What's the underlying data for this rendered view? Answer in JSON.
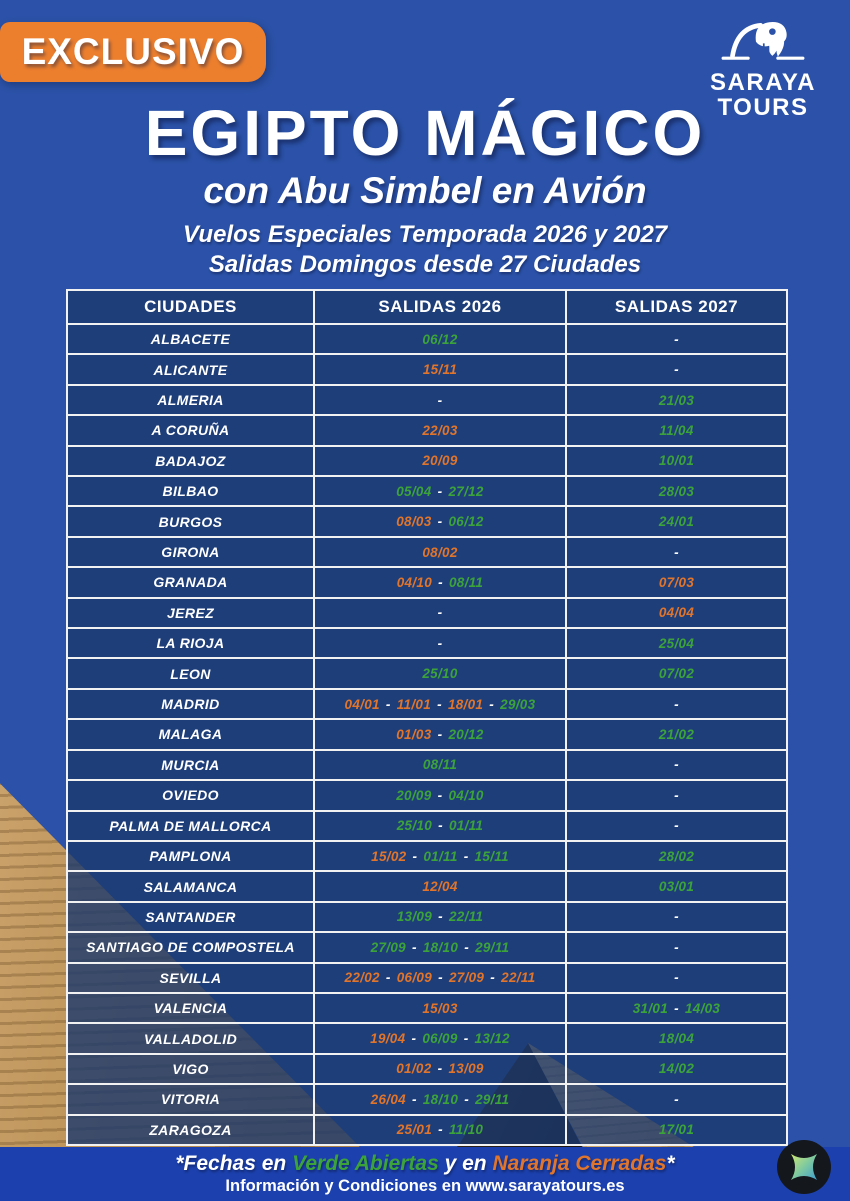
{
  "badge_label": "EXCLUSIVO",
  "brand": {
    "name_line1": "SARAYA",
    "name_line2": "TOURS",
    "logo_icon": "horus-falcon-icon"
  },
  "title": "EGIPTO MÁGICO",
  "subtitle": "con Abu Simbel en Avión",
  "tagline1": "Vuelos Especiales Temporada 2026 y 2027",
  "tagline2": "Salidas Domingos desde 27 Ciudades",
  "colors": {
    "background": "#2B52A8",
    "table_cell": "#1C3A6E",
    "border": "#F2F2F2",
    "open_green": "#3CA33A",
    "closed_orange": "#E0752B",
    "badge_orange": "#EC7F2E",
    "footer_bg": "#1C41AE",
    "sand": "#C9A46F",
    "pyramid_shadow": "#241B12"
  },
  "legend": {
    "green_means": "Abiertas",
    "orange_means": "Cerradas"
  },
  "table": {
    "headers": [
      "CIUDADES",
      "SALIDAS 2026",
      "SALIDAS 2027"
    ],
    "empty_mark": "-",
    "rows": [
      {
        "city": "ALBACETE",
        "s2026": [
          [
            "06/12",
            "g"
          ]
        ],
        "s2027": []
      },
      {
        "city": "ALICANTE",
        "s2026": [
          [
            "15/11",
            "o"
          ]
        ],
        "s2027": []
      },
      {
        "city": "ALMERIA",
        "s2026": [],
        "s2027": [
          [
            "21/03",
            "g"
          ]
        ]
      },
      {
        "city": "A CORUÑA",
        "s2026": [
          [
            "22/03",
            "o"
          ]
        ],
        "s2027": [
          [
            "11/04",
            "g"
          ]
        ]
      },
      {
        "city": "BADAJOZ",
        "s2026": [
          [
            "20/09",
            "o"
          ]
        ],
        "s2027": [
          [
            "10/01",
            "g"
          ]
        ]
      },
      {
        "city": "BILBAO",
        "s2026": [
          [
            "05/04",
            "g"
          ],
          [
            "27/12",
            "g"
          ]
        ],
        "s2027": [
          [
            "28/03",
            "g"
          ]
        ]
      },
      {
        "city": "BURGOS",
        "s2026": [
          [
            "08/03",
            "o"
          ],
          [
            "06/12",
            "g"
          ]
        ],
        "s2027": [
          [
            "24/01",
            "g"
          ]
        ]
      },
      {
        "city": "GIRONA",
        "s2026": [
          [
            "08/02",
            "o"
          ]
        ],
        "s2027": []
      },
      {
        "city": "GRANADA",
        "s2026": [
          [
            "04/10",
            "o"
          ],
          [
            "08/11",
            "g"
          ]
        ],
        "s2027": [
          [
            "07/03",
            "o"
          ]
        ]
      },
      {
        "city": "JEREZ",
        "s2026": [],
        "s2027": [
          [
            "04/04",
            "o"
          ]
        ]
      },
      {
        "city": "LA RIOJA",
        "s2026": [],
        "s2027": [
          [
            "25/04",
            "g"
          ]
        ]
      },
      {
        "city": "LEON",
        "s2026": [
          [
            "25/10",
            "g"
          ]
        ],
        "s2027": [
          [
            "07/02",
            "g"
          ]
        ]
      },
      {
        "city": "MADRID",
        "s2026": [
          [
            "04/01",
            "o"
          ],
          [
            "11/01",
            "o"
          ],
          [
            "18/01",
            "o"
          ],
          [
            "29/03",
            "g"
          ]
        ],
        "s2027": []
      },
      {
        "city": "MALAGA",
        "s2026": [
          [
            "01/03",
            "o"
          ],
          [
            "20/12",
            "g"
          ]
        ],
        "s2027": [
          [
            "21/02",
            "g"
          ]
        ]
      },
      {
        "city": "MURCIA",
        "s2026": [
          [
            "08/11",
            "g"
          ]
        ],
        "s2027": []
      },
      {
        "city": "OVIEDO",
        "s2026": [
          [
            "20/09",
            "g"
          ],
          [
            "04/10",
            "g"
          ]
        ],
        "s2027": []
      },
      {
        "city": "PALMA DE MALLORCA",
        "s2026": [
          [
            "25/10",
            "g"
          ],
          [
            "01/11",
            "g"
          ]
        ],
        "s2027": []
      },
      {
        "city": "PAMPLONA",
        "s2026": [
          [
            "15/02",
            "o"
          ],
          [
            "01/11",
            "g"
          ],
          [
            "15/11",
            "g"
          ]
        ],
        "s2027": [
          [
            "28/02",
            "g"
          ]
        ]
      },
      {
        "city": "SALAMANCA",
        "s2026": [
          [
            "12/04",
            "o"
          ]
        ],
        "s2027": [
          [
            "03/01",
            "g"
          ]
        ]
      },
      {
        "city": "SANTANDER",
        "s2026": [
          [
            "13/09",
            "g"
          ],
          [
            "22/11",
            "g"
          ]
        ],
        "s2027": []
      },
      {
        "city": "SANTIAGO DE COMPOSTELA",
        "s2026": [
          [
            "27/09",
            "g"
          ],
          [
            "18/10",
            "g"
          ],
          [
            "29/11",
            "g"
          ]
        ],
        "s2027": []
      },
      {
        "city": "SEVILLA",
        "s2026": [
          [
            "22/02",
            "o"
          ],
          [
            "06/09",
            "o"
          ],
          [
            "27/09",
            "o"
          ],
          [
            "22/11",
            "o"
          ]
        ],
        "s2027": []
      },
      {
        "city": "VALENCIA",
        "s2026": [
          [
            "15/03",
            "o"
          ]
        ],
        "s2027": [
          [
            "31/01",
            "g"
          ],
          [
            "14/03",
            "g"
          ]
        ]
      },
      {
        "city": "VALLADOLID",
        "s2026": [
          [
            "19/04",
            "o"
          ],
          [
            "06/09",
            "g"
          ],
          [
            "13/12",
            "g"
          ]
        ],
        "s2027": [
          [
            "18/04",
            "g"
          ]
        ]
      },
      {
        "city": "VIGO",
        "s2026": [
          [
            "01/02",
            "o"
          ],
          [
            "13/09",
            "o"
          ]
        ],
        "s2027": [
          [
            "14/02",
            "g"
          ]
        ]
      },
      {
        "city": "VITORIA",
        "s2026": [
          [
            "26/04",
            "o"
          ],
          [
            "18/10",
            "g"
          ],
          [
            "29/11",
            "g"
          ]
        ],
        "s2027": []
      },
      {
        "city": "ZARAGOZA",
        "s2026": [
          [
            "25/01",
            "o"
          ],
          [
            "11/10",
            "g"
          ]
        ],
        "s2027": [
          [
            "17/01",
            "g"
          ]
        ]
      }
    ]
  },
  "footer": {
    "note_parts": [
      {
        "text": "*Fechas en ",
        "color": "white"
      },
      {
        "text": "Verde Abiertas",
        "color": "open"
      },
      {
        "text": " y en ",
        "color": "white"
      },
      {
        "text": "Naranja Cerradas",
        "color": "closed"
      },
      {
        "text": "*",
        "color": "white"
      }
    ],
    "info": "Información y Condiciones en www.sarayatours.es"
  }
}
